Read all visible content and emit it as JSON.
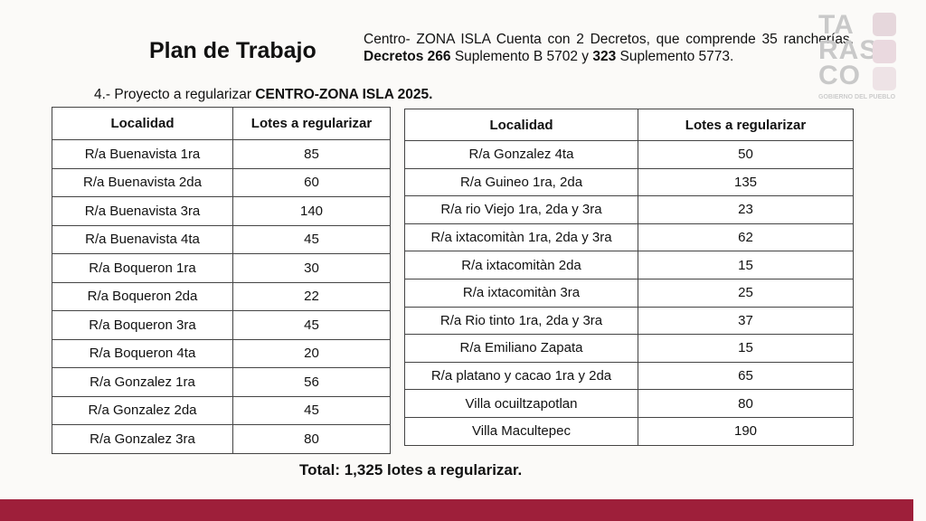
{
  "title": "Plan de Trabajo",
  "description": {
    "p1": "Centro- ZONA ISLA Cuenta con 2 Decretos, que comprende 35 rancherías, ",
    "b1": "Decretos 266",
    "p2": " Suplemento B 5702 y ",
    "b2": "323",
    "p3": " Suplemento 5773."
  },
  "subtitle": {
    "prefix": "4.- Proyecto a regularizar ",
    "bold": "CENTRO-ZONA ISLA 2025."
  },
  "logo": {
    "lines": [
      "TA",
      "RAS",
      "CO"
    ],
    "tagline": "GOBIERNO DEL PUEBLO"
  },
  "headers": {
    "localidad": "Localidad",
    "lotes": "Lotes a regularizar"
  },
  "left_table": [
    {
      "localidad": "R/a Buenavista 1ra",
      "lotes": "85"
    },
    {
      "localidad": "R/a Buenavista 2da",
      "lotes": "60"
    },
    {
      "localidad": "R/a Buenavista 3ra",
      "lotes": "140"
    },
    {
      "localidad": "R/a Buenavista 4ta",
      "lotes": "45"
    },
    {
      "localidad": "R/a Boqueron 1ra",
      "lotes": "30"
    },
    {
      "localidad": "R/a Boqueron 2da",
      "lotes": "22"
    },
    {
      "localidad": "R/a Boqueron 3ra",
      "lotes": "45"
    },
    {
      "localidad": "R/a Boqueron 4ta",
      "lotes": "20"
    },
    {
      "localidad": "R/a Gonzalez 1ra",
      "lotes": "56"
    },
    {
      "localidad": "R/a Gonzalez 2da",
      "lotes": "45"
    },
    {
      "localidad": "R/a Gonzalez 3ra",
      "lotes": "80"
    }
  ],
  "right_table": [
    {
      "localidad": "R/a Gonzalez 4ta",
      "lotes": "50"
    },
    {
      "localidad": "R/a Guineo 1ra, 2da",
      "lotes": "135"
    },
    {
      "localidad": "R/a rio Viejo 1ra, 2da y 3ra",
      "lotes": "23"
    },
    {
      "localidad": "R/a ixtacomitàn 1ra, 2da y 3ra",
      "lotes": "62"
    },
    {
      "localidad": "R/a ixtacomitàn 2da",
      "lotes": "15"
    },
    {
      "localidad": "R/a ixtacomitàn 3ra",
      "lotes": "25"
    },
    {
      "localidad": "R/a Rio tinto 1ra, 2da y 3ra",
      "lotes": "37"
    },
    {
      "localidad": "R/a Emiliano Zapata",
      "lotes": "15"
    },
    {
      "localidad": "R/a platano y cacao 1ra y 2da",
      "lotes": "65"
    },
    {
      "localidad": "Villa ocuiltzapotlan",
      "lotes": "80"
    },
    {
      "localidad": "Villa Macultepec",
      "lotes": "190"
    }
  ],
  "total": "Total: 1,325 lotes a regularizar.",
  "colors": {
    "band": "#9e1f3a"
  }
}
